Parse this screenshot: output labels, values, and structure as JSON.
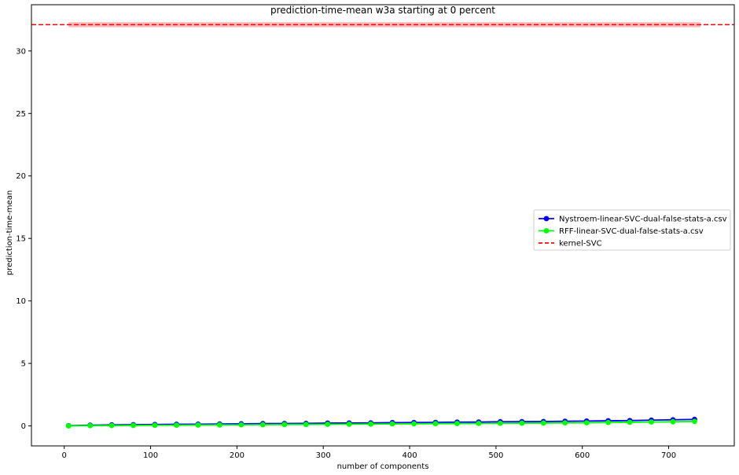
{
  "chart_data": {
    "type": "line",
    "title": "prediction-time-mean w3a starting at 0 percent",
    "xlabel": "number of components",
    "ylabel": "prediction-time-mean",
    "xlim": [
      -38,
      776
    ],
    "ylim": [
      -1.6,
      33.7
    ],
    "xticks": [
      0,
      100,
      200,
      300,
      400,
      500,
      600,
      700
    ],
    "yticks": [
      0,
      5,
      10,
      15,
      20,
      25,
      30
    ],
    "grid": false,
    "legend_position": "center-right",
    "x": [
      5,
      30,
      55,
      80,
      105,
      130,
      155,
      180,
      205,
      230,
      255,
      280,
      305,
      330,
      355,
      380,
      405,
      430,
      455,
      480,
      505,
      530,
      555,
      580,
      605,
      630,
      655,
      680,
      705,
      730
    ],
    "series": [
      {
        "name": "Nystroem-linear-SVC-dual-false-stats-a.csv",
        "color": "#0000ff",
        "style": "solid",
        "marker": "circle",
        "values": [
          0.02,
          0.06,
          0.08,
          0.1,
          0.11,
          0.13,
          0.14,
          0.15,
          0.17,
          0.18,
          0.19,
          0.2,
          0.22,
          0.23,
          0.24,
          0.26,
          0.27,
          0.28,
          0.3,
          0.31,
          0.33,
          0.34,
          0.35,
          0.37,
          0.39,
          0.41,
          0.43,
          0.46,
          0.49,
          0.52
        ]
      },
      {
        "name": "RFF-linear-SVC-dual-false-stats-a.csv",
        "color": "#00ff00",
        "style": "solid",
        "marker": "circle",
        "values": [
          0.0,
          0.02,
          0.03,
          0.04,
          0.05,
          0.06,
          0.07,
          0.08,
          0.09,
          0.1,
          0.11,
          0.12,
          0.13,
          0.14,
          0.15,
          0.16,
          0.17,
          0.18,
          0.19,
          0.2,
          0.21,
          0.22,
          0.23,
          0.24,
          0.25,
          0.27,
          0.29,
          0.31,
          0.33,
          0.36
        ]
      }
    ],
    "reference_line": {
      "name": "kernel-SVC",
      "color": "#ff0000",
      "style": "dashed",
      "value": 32.1,
      "band": [
        31.9,
        32.3
      ],
      "band_color": "#ffaaaa",
      "band_x": [
        5,
        737
      ]
    }
  }
}
